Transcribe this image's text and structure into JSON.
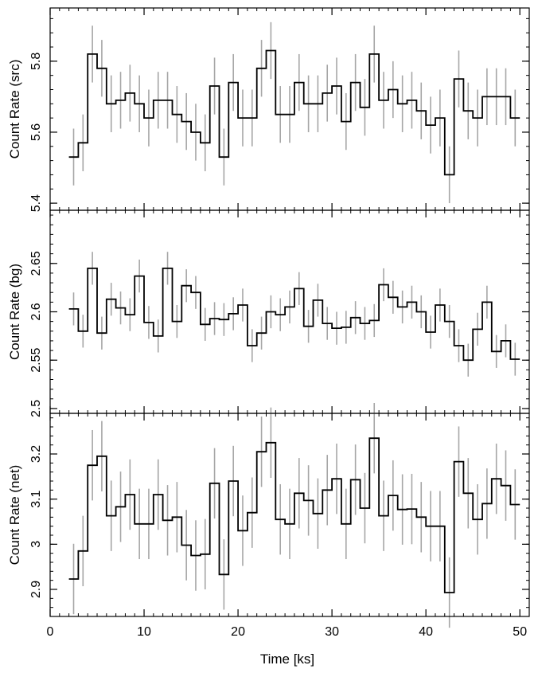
{
  "chart_data": {
    "type": "line",
    "style": "step-histogram-with-error-bars",
    "shared_x": {
      "label": "Time [ks]",
      "range": [
        0,
        51
      ],
      "ticks": [
        0,
        10,
        20,
        30,
        40,
        50
      ]
    },
    "bin_width_ks": 1.0,
    "panels": [
      {
        "ylabel": "Count Rate (src)",
        "ylim": [
          5.38,
          5.95
        ],
        "ticks": [
          5.4,
          5.6,
          5.8
        ],
        "tick_labels": [
          "5.4",
          "5.6",
          "5.8"
        ],
        "minor_step": 0.04,
        "x": [
          2.5,
          3.5,
          4.5,
          5.5,
          6.5,
          7.5,
          8.5,
          9.5,
          10.5,
          11.5,
          12.5,
          13.5,
          14.5,
          15.5,
          16.5,
          17.5,
          18.5,
          19.5,
          20.5,
          21.5,
          22.5,
          23.5,
          24.5,
          25.5,
          26.5,
          27.5,
          28.5,
          29.5,
          30.5,
          31.5,
          32.5,
          33.5,
          34.5,
          35.5,
          36.5,
          37.5,
          38.5,
          39.5,
          40.5,
          41.5,
          42.5,
          43.5,
          44.5,
          45.5,
          46.5,
          47.5,
          48.5,
          49.5
        ],
        "values": [
          5.53,
          5.57,
          5.82,
          5.78,
          5.68,
          5.69,
          5.71,
          5.68,
          5.64,
          5.69,
          5.69,
          5.65,
          5.63,
          5.6,
          5.57,
          5.73,
          5.53,
          5.74,
          5.64,
          5.64,
          5.78,
          5.83,
          5.65,
          5.65,
          5.74,
          5.68,
          5.68,
          5.71,
          5.73,
          5.63,
          5.74,
          5.67,
          5.82,
          5.69,
          5.72,
          5.68,
          5.69,
          5.66,
          5.62,
          5.64,
          5.48,
          5.75,
          5.66,
          5.64,
          5.7,
          5.7,
          5.7,
          5.64
        ],
        "errors": [
          0.08,
          0.08,
          0.08,
          0.08,
          0.08,
          0.08,
          0.08,
          0.08,
          0.08,
          0.08,
          0.08,
          0.08,
          0.08,
          0.08,
          0.08,
          0.08,
          0.08,
          0.08,
          0.08,
          0.08,
          0.08,
          0.08,
          0.08,
          0.08,
          0.08,
          0.08,
          0.08,
          0.08,
          0.08,
          0.08,
          0.08,
          0.08,
          0.08,
          0.08,
          0.08,
          0.08,
          0.08,
          0.08,
          0.08,
          0.08,
          0.08,
          0.08,
          0.08,
          0.08,
          0.08,
          0.08,
          0.08,
          0.08
        ]
      },
      {
        "ylabel": "Count Rate (bg)",
        "ylim": [
          2.495,
          2.705
        ],
        "ticks": [
          2.5,
          2.55,
          2.6,
          2.65
        ],
        "tick_labels": [
          "2.5",
          "2.55",
          "2.6",
          "2.65"
        ],
        "minor_step": 0.01,
        "x": [
          2.5,
          3.5,
          4.5,
          5.5,
          6.5,
          7.5,
          8.5,
          9.5,
          10.5,
          11.5,
          12.5,
          13.5,
          14.5,
          15.5,
          16.5,
          17.5,
          18.5,
          19.5,
          20.5,
          21.5,
          22.5,
          23.5,
          24.5,
          25.5,
          26.5,
          27.5,
          28.5,
          29.5,
          30.5,
          31.5,
          32.5,
          33.5,
          34.5,
          35.5,
          36.5,
          37.5,
          38.5,
          39.5,
          40.5,
          41.5,
          42.5,
          43.5,
          44.5,
          45.5,
          46.5,
          47.5,
          48.5,
          49.5
        ],
        "values": [
          2.603,
          2.58,
          2.645,
          2.578,
          2.613,
          2.604,
          2.597,
          2.637,
          2.589,
          2.575,
          2.645,
          2.59,
          2.627,
          2.62,
          2.587,
          2.593,
          2.592,
          2.598,
          2.607,
          2.565,
          2.578,
          2.6,
          2.597,
          2.605,
          2.624,
          2.585,
          2.612,
          2.588,
          2.583,
          2.584,
          2.594,
          2.588,
          2.591,
          2.628,
          2.615,
          2.605,
          2.61,
          2.6,
          2.579,
          2.607,
          2.59,
          2.565,
          2.55,
          2.582,
          2.61,
          2.559,
          2.57,
          2.551
        ],
        "errors": [
          0.017,
          0.017,
          0.017,
          0.017,
          0.017,
          0.017,
          0.017,
          0.017,
          0.017,
          0.017,
          0.017,
          0.017,
          0.017,
          0.017,
          0.017,
          0.017,
          0.017,
          0.017,
          0.017,
          0.017,
          0.017,
          0.017,
          0.017,
          0.017,
          0.017,
          0.017,
          0.017,
          0.017,
          0.017,
          0.017,
          0.017,
          0.017,
          0.017,
          0.017,
          0.017,
          0.017,
          0.017,
          0.017,
          0.017,
          0.017,
          0.017,
          0.017,
          0.017,
          0.017,
          0.017,
          0.017,
          0.017,
          0.017
        ]
      },
      {
        "ylabel": "Count Rate (net)",
        "ylim": [
          2.84,
          3.29
        ],
        "ticks": [
          2.9,
          3.0,
          3.1,
          3.2
        ],
        "tick_labels": [
          "2.9",
          "3",
          "3.1",
          "3.2"
        ],
        "minor_step": 0.02,
        "x": [
          2.5,
          3.5,
          4.5,
          5.5,
          6.5,
          7.5,
          8.5,
          9.5,
          10.5,
          11.5,
          12.5,
          13.5,
          14.5,
          15.5,
          16.5,
          17.5,
          18.5,
          19.5,
          20.5,
          21.5,
          22.5,
          23.5,
          24.5,
          25.5,
          26.5,
          27.5,
          28.5,
          29.5,
          30.5,
          31.5,
          32.5,
          33.5,
          34.5,
          35.5,
          36.5,
          37.5,
          38.5,
          39.5,
          40.5,
          41.5,
          42.5,
          43.5,
          44.5,
          45.5,
          46.5,
          47.5,
          48.5,
          49.5
        ],
        "values": [
          2.923,
          2.985,
          3.175,
          3.195,
          3.063,
          3.083,
          3.11,
          3.045,
          3.045,
          3.11,
          3.053,
          3.06,
          2.998,
          2.975,
          2.978,
          3.135,
          2.933,
          3.14,
          3.03,
          3.07,
          3.205,
          3.225,
          3.055,
          3.045,
          3.113,
          3.097,
          3.068,
          3.12,
          3.145,
          3.045,
          3.143,
          3.08,
          3.235,
          3.063,
          3.108,
          3.077,
          3.078,
          3.06,
          3.04,
          3.04,
          2.893,
          3.183,
          3.113,
          3.055,
          3.09,
          3.145,
          3.13,
          3.088
        ],
        "errors": [
          0.078,
          0.078,
          0.078,
          0.078,
          0.078,
          0.078,
          0.078,
          0.078,
          0.078,
          0.078,
          0.078,
          0.078,
          0.078,
          0.078,
          0.078,
          0.078,
          0.078,
          0.078,
          0.078,
          0.078,
          0.078,
          0.078,
          0.078,
          0.078,
          0.078,
          0.078,
          0.078,
          0.078,
          0.078,
          0.078,
          0.078,
          0.078,
          0.078,
          0.078,
          0.078,
          0.078,
          0.078,
          0.078,
          0.078,
          0.078,
          0.078,
          0.078,
          0.078,
          0.078,
          0.078,
          0.078,
          0.078,
          0.078
        ]
      }
    ],
    "colors": {
      "histogram": "#000000",
      "error_bars": "#a6a6a6",
      "frame": "#000000"
    },
    "grid": false,
    "legend": "none"
  }
}
